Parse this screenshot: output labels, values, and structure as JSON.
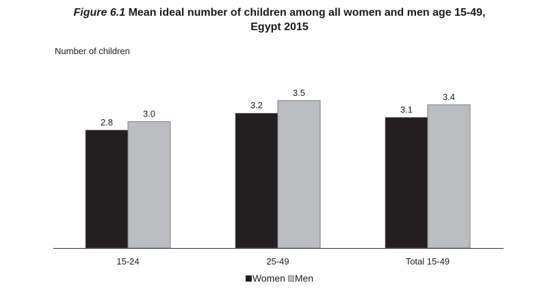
{
  "title": {
    "figure_label": "Figure 6.1",
    "line1": "Mean ideal number of children among all women and men age 15-49,",
    "line2": "Egypt 2015"
  },
  "colors": {
    "women": "#231f20",
    "men": "#bcbdc0",
    "bar_stroke": "#808080",
    "axis": "#333333"
  },
  "chart_data": {
    "type": "bar",
    "ylabel": "Number of children",
    "xlabel": "",
    "ylim": [
      0,
      4.0
    ],
    "grid": false,
    "legend_position": "bottom",
    "categories": [
      "15-24",
      "25-49",
      "Total 15-49"
    ],
    "series": [
      {
        "name": "Women",
        "values": [
          2.8,
          3.2,
          3.1
        ],
        "labels": [
          "2.8",
          "3.2",
          "3.1"
        ]
      },
      {
        "name": "Men",
        "values": [
          3.0,
          3.5,
          3.4
        ],
        "labels": [
          "3.0",
          "3.5",
          "3.4"
        ]
      }
    ]
  }
}
